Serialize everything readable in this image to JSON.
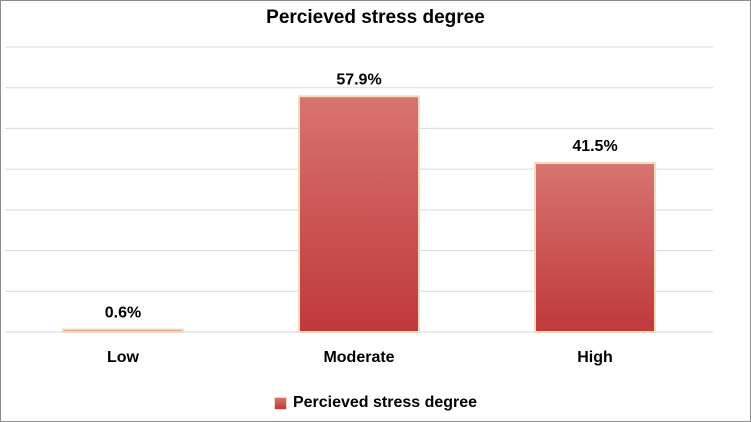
{
  "chart_data": {
    "type": "bar",
    "title": "Percieved stress degree",
    "categories": [
      "Low",
      "Moderate",
      "High"
    ],
    "series": [
      {
        "name": "Percieved stress degree",
        "values": [
          0.6,
          57.9,
          41.5
        ],
        "labels": [
          "0.6%",
          "57.9%",
          "41.5%"
        ]
      }
    ],
    "ylim": [
      0,
      70
    ],
    "grid": true,
    "legend_position": "bottom",
    "colors": {
      "bar_top": "#d77470",
      "bar_bottom": "#c0383a",
      "bar_edge": "#f2dcbd",
      "gridline": "#d9d9d9"
    }
  }
}
